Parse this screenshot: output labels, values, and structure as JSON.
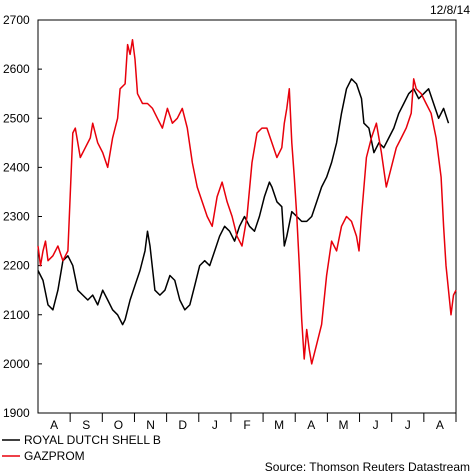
{
  "date_stamp": "12/8/14",
  "source_note": "Source: Thomson Reuters Datastream",
  "chart_data": {
    "type": "line",
    "title": "",
    "xlabel": "",
    "ylabel": "",
    "ylim": [
      1900,
      2700
    ],
    "yticks": [
      1900,
      2000,
      2100,
      2200,
      2300,
      2400,
      2500,
      2600,
      2700
    ],
    "x_month_labels": [
      "A",
      "S",
      "O",
      "N",
      "D",
      "J",
      "F",
      "M",
      "A",
      "M",
      "J",
      "J",
      "A"
    ],
    "grid": false,
    "legend_position": "bottom-left",
    "series": [
      {
        "name": "ROYAL DUTCH SHELL B",
        "color": "#000000",
        "points": [
          [
            0,
            2190
          ],
          [
            2,
            2170
          ],
          [
            4,
            2120
          ],
          [
            6,
            2110
          ],
          [
            8,
            2150
          ],
          [
            10,
            2210
          ],
          [
            12,
            2220
          ],
          [
            14,
            2200
          ],
          [
            16,
            2150
          ],
          [
            18,
            2140
          ],
          [
            20,
            2130
          ],
          [
            22,
            2140
          ],
          [
            24,
            2120
          ],
          [
            26,
            2150
          ],
          [
            28,
            2130
          ],
          [
            30,
            2110
          ],
          [
            32,
            2100
          ],
          [
            34,
            2080
          ],
          [
            35,
            2090
          ],
          [
            37,
            2130
          ],
          [
            39,
            2160
          ],
          [
            41,
            2190
          ],
          [
            43,
            2230
          ],
          [
            44,
            2270
          ],
          [
            45,
            2240
          ],
          [
            47,
            2150
          ],
          [
            49,
            2140
          ],
          [
            51,
            2150
          ],
          [
            53,
            2180
          ],
          [
            55,
            2170
          ],
          [
            57,
            2130
          ],
          [
            59,
            2110
          ],
          [
            61,
            2120
          ],
          [
            63,
            2160
          ],
          [
            65,
            2200
          ],
          [
            67,
            2210
          ],
          [
            69,
            2200
          ],
          [
            71,
            2230
          ],
          [
            73,
            2260
          ],
          [
            75,
            2280
          ],
          [
            77,
            2270
          ],
          [
            79,
            2250
          ],
          [
            81,
            2280
          ],
          [
            83,
            2300
          ],
          [
            85,
            2280
          ],
          [
            87,
            2270
          ],
          [
            89,
            2300
          ],
          [
            91,
            2340
          ],
          [
            93,
            2370
          ],
          [
            94,
            2360
          ],
          [
            96,
            2330
          ],
          [
            98,
            2320
          ],
          [
            99,
            2240
          ],
          [
            100,
            2260
          ],
          [
            102,
            2310
          ],
          [
            104,
            2300
          ],
          [
            106,
            2290
          ],
          [
            108,
            2290
          ],
          [
            110,
            2300
          ],
          [
            112,
            2330
          ],
          [
            114,
            2360
          ],
          [
            116,
            2380
          ],
          [
            118,
            2410
          ],
          [
            120,
            2450
          ],
          [
            122,
            2510
          ],
          [
            124,
            2560
          ],
          [
            126,
            2580
          ],
          [
            128,
            2570
          ],
          [
            130,
            2540
          ],
          [
            131,
            2490
          ],
          [
            133,
            2480
          ],
          [
            135,
            2430
          ],
          [
            137,
            2450
          ],
          [
            139,
            2440
          ],
          [
            141,
            2460
          ],
          [
            143,
            2480
          ],
          [
            145,
            2510
          ],
          [
            147,
            2530
          ],
          [
            149,
            2550
          ],
          [
            151,
            2560
          ],
          [
            153,
            2540
          ],
          [
            155,
            2550
          ],
          [
            157,
            2560
          ],
          [
            159,
            2530
          ],
          [
            161,
            2500
          ],
          [
            163,
            2520
          ],
          [
            165,
            2490
          ]
        ]
      },
      {
        "name": "GAZPROM",
        "color": "#e8000b",
        "points": [
          [
            0,
            2240
          ],
          [
            1,
            2200
          ],
          [
            2,
            2230
          ],
          [
            3,
            2250
          ],
          [
            4,
            2210
          ],
          [
            6,
            2220
          ],
          [
            8,
            2240
          ],
          [
            10,
            2210
          ],
          [
            12,
            2230
          ],
          [
            14,
            2470
          ],
          [
            15,
            2480
          ],
          [
            17,
            2420
          ],
          [
            19,
            2440
          ],
          [
            21,
            2460
          ],
          [
            22,
            2490
          ],
          [
            24,
            2450
          ],
          [
            26,
            2430
          ],
          [
            28,
            2400
          ],
          [
            30,
            2460
          ],
          [
            32,
            2500
          ],
          [
            33,
            2560
          ],
          [
            35,
            2570
          ],
          [
            36,
            2650
          ],
          [
            37,
            2630
          ],
          [
            38,
            2660
          ],
          [
            39,
            2620
          ],
          [
            40,
            2550
          ],
          [
            42,
            2530
          ],
          [
            44,
            2530
          ],
          [
            46,
            2520
          ],
          [
            48,
            2500
          ],
          [
            50,
            2480
          ],
          [
            52,
            2520
          ],
          [
            54,
            2490
          ],
          [
            56,
            2500
          ],
          [
            58,
            2520
          ],
          [
            60,
            2480
          ],
          [
            62,
            2410
          ],
          [
            64,
            2360
          ],
          [
            66,
            2330
          ],
          [
            68,
            2300
          ],
          [
            70,
            2280
          ],
          [
            72,
            2340
          ],
          [
            74,
            2370
          ],
          [
            76,
            2330
          ],
          [
            78,
            2300
          ],
          [
            80,
            2260
          ],
          [
            82,
            2240
          ],
          [
            84,
            2300
          ],
          [
            86,
            2410
          ],
          [
            88,
            2470
          ],
          [
            90,
            2480
          ],
          [
            92,
            2480
          ],
          [
            94,
            2450
          ],
          [
            96,
            2420
          ],
          [
            98,
            2440
          ],
          [
            99,
            2490
          ],
          [
            100,
            2520
          ],
          [
            101,
            2560
          ],
          [
            102,
            2450
          ],
          [
            103,
            2380
          ],
          [
            104,
            2300
          ],
          [
            105,
            2200
          ],
          [
            106,
            2090
          ],
          [
            107,
            2010
          ],
          [
            108,
            2070
          ],
          [
            109,
            2030
          ],
          [
            110,
            2000
          ],
          [
            112,
            2040
          ],
          [
            114,
            2080
          ],
          [
            116,
            2180
          ],
          [
            118,
            2250
          ],
          [
            120,
            2230
          ],
          [
            122,
            2280
          ],
          [
            124,
            2300
          ],
          [
            126,
            2290
          ],
          [
            128,
            2260
          ],
          [
            129,
            2230
          ],
          [
            130,
            2300
          ],
          [
            132,
            2420
          ],
          [
            134,
            2460
          ],
          [
            136,
            2490
          ],
          [
            138,
            2430
          ],
          [
            140,
            2360
          ],
          [
            142,
            2400
          ],
          [
            144,
            2440
          ],
          [
            146,
            2460
          ],
          [
            148,
            2480
          ],
          [
            150,
            2510
          ],
          [
            151,
            2580
          ],
          [
            152,
            2560
          ],
          [
            154,
            2550
          ],
          [
            156,
            2530
          ],
          [
            158,
            2510
          ],
          [
            160,
            2460
          ],
          [
            161,
            2420
          ],
          [
            162,
            2380
          ],
          [
            163,
            2280
          ],
          [
            164,
            2200
          ],
          [
            165,
            2150
          ],
          [
            166,
            2100
          ],
          [
            167,
            2140
          ],
          [
            168,
            2150
          ]
        ]
      }
    ]
  }
}
